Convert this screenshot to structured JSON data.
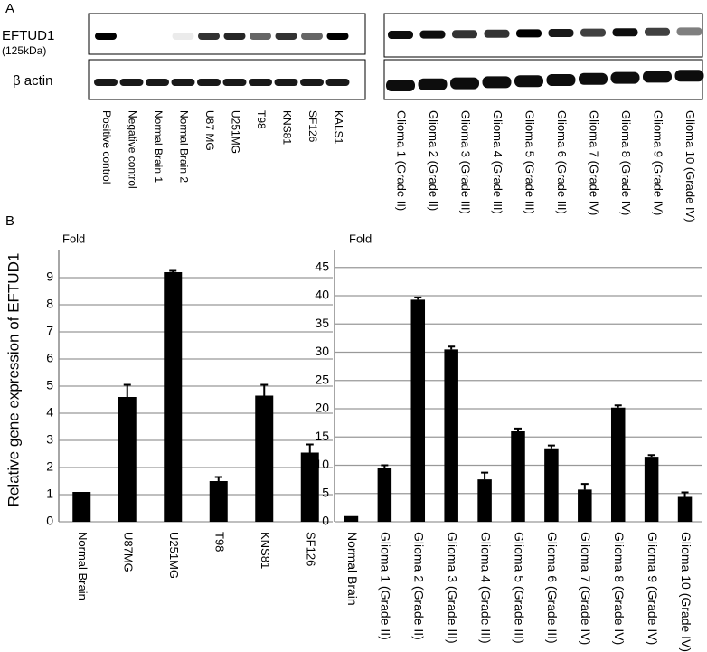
{
  "panel_a": {
    "label": "A",
    "protein": "EFTUD1",
    "protein_size": "(125kDa)",
    "control": "β actin",
    "lanes_left": [
      "Positive control",
      "Negative control",
      "Normal Brain 1",
      "Normal Brain 2",
      "U87 MG",
      "U251MG",
      "T98",
      "KNS81",
      "SF126",
      "KALS1"
    ],
    "lanes_right": [
      "Glioma 1 (Grade II)",
      "Glioma 2 (Grade II)",
      "Glioma 3 (Grade III)",
      "Glioma 4 (Grade III)",
      "Glioma 5 (Grade III)",
      "Glioma 6 (Grade III)",
      "Glioma 7 (Grade IV)",
      "Glioma 8 (Grade IV)",
      "Glioma 9 (Grade IV)",
      "Glioma 10 (Grade IV)"
    ]
  },
  "panel_b": {
    "label": "B",
    "y_label": "Relative gene expression of EFTUD1"
  },
  "chart_data": [
    {
      "type": "bar",
      "unit_label": "Fold",
      "categories": [
        "Normal Brain",
        "U87MG",
        "U251MG",
        "T98",
        "KNS81",
        "SF126"
      ],
      "series": [
        {
          "color": "#000000",
          "values": [
            1.1,
            4.6,
            9.2,
            1.5,
            4.65,
            2.55
          ],
          "errors": [
            0,
            0.45,
            0.05,
            0.15,
            0.4,
            0.3
          ]
        }
      ],
      "ylim": [
        0,
        10
      ],
      "yticks": [
        0,
        1,
        2,
        3,
        4,
        5,
        6,
        7,
        8,
        9
      ],
      "grid": true
    },
    {
      "type": "bar",
      "unit_label": "Fold",
      "categories": [
        "Normal Brain",
        "Glioma 1 (Grade II)",
        "Glioma 2 (Grade II)",
        "Glioma 3 (Grade III)",
        "Glioma 4 (Grade III)",
        "Glioma 5 (Grade III)",
        "Glioma 6 (Grade III)",
        "Glioma 7 (Grade IV)",
        "Glioma 8 (Grade IV)",
        "Glioma 9 (Grade IV)",
        "Glioma 10 (Grade IV)"
      ],
      "series": [
        {
          "color": "#000000",
          "values": [
            1,
            9.5,
            39.3,
            30.5,
            7.5,
            16,
            13,
            5.7,
            20.2,
            11.5,
            4.4
          ],
          "errors": [
            0,
            0.5,
            0.4,
            0.5,
            1.2,
            0.5,
            0.5,
            1,
            0.4,
            0.3,
            0.8
          ]
        }
      ],
      "ylim": [
        0,
        48
      ],
      "yticks": [
        0,
        5,
        10,
        15,
        20,
        25,
        30,
        35,
        40,
        45
      ],
      "grid": true
    }
  ]
}
